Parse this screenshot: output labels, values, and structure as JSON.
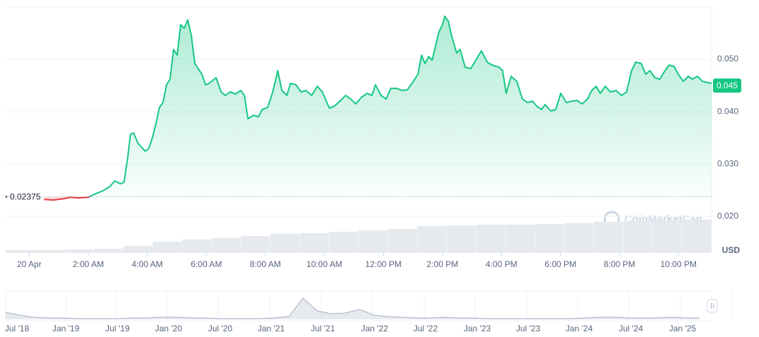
{
  "chart_data": {
    "type": "line",
    "currency": "USD",
    "watermark": "CoinMarketCap",
    "color_up": "#16c784",
    "color_down": "#ea3943",
    "baseline": 0.02375,
    "current_price": 0.045,
    "xlim": [
      -0.8,
      23.12
    ],
    "ylim": [
      0.013,
      0.06
    ],
    "xticks": [
      {
        "value": 0,
        "label": "20 Apr"
      },
      {
        "value": 2,
        "label": "2:00 AM"
      },
      {
        "value": 4,
        "label": "4:00 AM"
      },
      {
        "value": 6,
        "label": "6:00 AM"
      },
      {
        "value": 8,
        "label": "8:00 AM"
      },
      {
        "value": 10,
        "label": "10:00 AM"
      },
      {
        "value": 12,
        "label": "12:00 PM"
      },
      {
        "value": 14,
        "label": "2:00 PM"
      },
      {
        "value": 16,
        "label": "4:00 PM"
      },
      {
        "value": 18,
        "label": "6:00 PM"
      },
      {
        "value": 20,
        "label": "8:00 PM"
      },
      {
        "value": 22,
        "label": "10:00 PM"
      }
    ],
    "yticks": [
      {
        "value": 0.02,
        "label": "0.020"
      },
      {
        "value": 0.03,
        "label": "0.030"
      },
      {
        "value": 0.04,
        "label": "0.040"
      },
      {
        "value": 0.05,
        "label": "0.050"
      }
    ],
    "grid": true,
    "x": [
      0.5,
      0.82,
      1.18,
      1.41,
      1.65,
      2.01,
      2.25,
      2.49,
      2.73,
      2.9,
      3.09,
      3.21,
      3.33,
      3.43,
      3.53,
      3.69,
      3.93,
      4.05,
      4.17,
      4.29,
      4.41,
      4.53,
      4.65,
      4.77,
      4.89,
      5.01,
      5.13,
      5.25,
      5.37,
      5.49,
      5.61,
      5.85,
      5.97,
      6.09,
      6.33,
      6.5,
      6.64,
      6.81,
      6.98,
      7.17,
      7.29,
      7.41,
      7.6,
      7.77,
      7.89,
      8.08,
      8.25,
      8.42,
      8.56,
      8.73,
      8.85,
      9.04,
      9.21,
      9.38,
      9.57,
      9.76,
      9.93,
      10.17,
      10.34,
      10.53,
      10.72,
      10.89,
      11.06,
      11.25,
      11.44,
      11.61,
      11.73,
      11.92,
      12.09,
      12.25,
      12.45,
      12.64,
      12.81,
      12.97,
      13.17,
      13.29,
      13.41,
      13.53,
      13.65,
      13.74,
      13.88,
      14.0,
      14.08,
      14.2,
      14.32,
      14.48,
      14.6,
      14.77,
      14.96,
      15.13,
      15.32,
      15.52,
      15.68,
      15.92,
      16.04,
      16.16,
      16.33,
      16.52,
      16.71,
      16.88,
      17.05,
      17.19,
      17.36,
      17.48,
      17.67,
      17.84,
      18.01,
      18.2,
      18.39,
      18.56,
      18.73,
      18.92,
      19.06,
      19.21,
      19.35,
      19.52,
      19.69,
      19.88,
      20.07,
      20.24,
      20.41,
      20.55,
      20.74,
      20.89,
      21.03,
      21.2,
      21.37,
      21.51,
      21.68,
      21.85,
      21.99,
      22.16,
      22.33,
      22.47,
      22.64,
      22.81,
      23.12
    ],
    "values": [
      0.02324,
      0.02311,
      0.02338,
      0.02365,
      0.02351,
      0.02365,
      0.02432,
      0.02486,
      0.02568,
      0.02676,
      0.02622,
      0.02649,
      0.03095,
      0.03568,
      0.03595,
      0.03392,
      0.03243,
      0.03297,
      0.035,
      0.0377,
      0.04081,
      0.04176,
      0.04514,
      0.04622,
      0.05189,
      0.05081,
      0.05662,
      0.05595,
      0.05757,
      0.05459,
      0.04919,
      0.04716,
      0.04514,
      0.04541,
      0.04649,
      0.04378,
      0.04311,
      0.04378,
      0.04338,
      0.04405,
      0.04311,
      0.03865,
      0.03932,
      0.03905,
      0.04041,
      0.04081,
      0.04378,
      0.04784,
      0.04405,
      0.04311,
      0.04541,
      0.04514,
      0.04378,
      0.04405,
      0.04311,
      0.04486,
      0.04378,
      0.04068,
      0.04108,
      0.04203,
      0.04311,
      0.04243,
      0.04149,
      0.0427,
      0.04351,
      0.04311,
      0.04514,
      0.04311,
      0.04243,
      0.04446,
      0.04446,
      0.04405,
      0.04419,
      0.04541,
      0.04716,
      0.05081,
      0.04919,
      0.05054,
      0.04986,
      0.05189,
      0.05527,
      0.05662,
      0.05824,
      0.0573,
      0.05432,
      0.05122,
      0.05189,
      0.04851,
      0.04824,
      0.04986,
      0.05162,
      0.04946,
      0.04892,
      0.04851,
      0.04784,
      0.04351,
      0.04676,
      0.04581,
      0.04243,
      0.04176,
      0.04203,
      0.04108,
      0.04041,
      0.04135,
      0.04014,
      0.04041,
      0.04351,
      0.04176,
      0.04203,
      0.04216,
      0.04149,
      0.04243,
      0.04405,
      0.04486,
      0.04351,
      0.04486,
      0.04378,
      0.04405,
      0.04311,
      0.04378,
      0.04784,
      0.04946,
      0.04919,
      0.04716,
      0.04784,
      0.04649,
      0.04622,
      0.04757,
      0.04892,
      0.04865,
      0.04716,
      0.04581,
      0.04676,
      0.04622,
      0.04676,
      0.04581,
      0.04541
    ],
    "volume": {
      "color": "#e6e9ee",
      "lim": [
        0,
        100
      ],
      "values": [
        4,
        4,
        5,
        6,
        10,
        16,
        19,
        21,
        24,
        27,
        28,
        30,
        32,
        34,
        38,
        39,
        40,
        40,
        41,
        42,
        44,
        45,
        46,
        47
      ]
    },
    "navigator": {
      "color": "#d5dae1",
      "lim": [
        0,
        40
      ],
      "labels": [
        "Jul '18",
        "Jan '19",
        "Jul '19",
        "Jan '20",
        "Jul '20",
        "Jan '21",
        "Jul '21",
        "Jan '22",
        "Jul '22",
        "Jan '23",
        "Jul '23",
        "Jan '24",
        "Jul '24",
        "Jan '25"
      ],
      "values": [
        10,
        6,
        3,
        2,
        2,
        1,
        1,
        1,
        1,
        2,
        2,
        3,
        3,
        2,
        2,
        1,
        1,
        1,
        1,
        2,
        4,
        30,
        12,
        8,
        9,
        14,
        6,
        4,
        3,
        2,
        2,
        3,
        2,
        2,
        1,
        1,
        1,
        1,
        1,
        1,
        1,
        2,
        3,
        3,
        2,
        2,
        2,
        3,
        2,
        2
      ]
    }
  }
}
